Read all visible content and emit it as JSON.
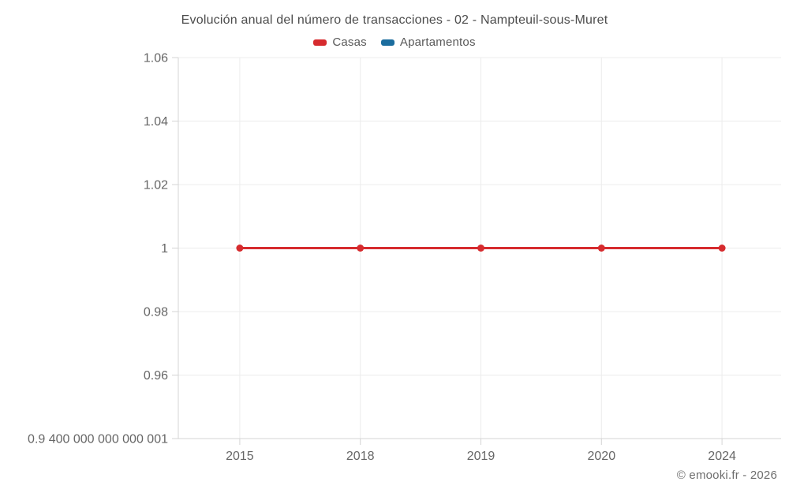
{
  "chart_data": {
    "type": "line",
    "title": "Evolución anual del número de transacciones - 02 - Nampteuil-sous-Muret",
    "categories": [
      "2015",
      "2018",
      "2019",
      "2020",
      "2024"
    ],
    "series": [
      {
        "name": "Casas",
        "color": "#d62b2e",
        "values": [
          1,
          1,
          1,
          1,
          1
        ]
      },
      {
        "name": "Apartamentos",
        "color": "#1b6d9e",
        "values": []
      }
    ],
    "yticks": [
      {
        "label": "1.06",
        "value": 1.06
      },
      {
        "label": "1.04",
        "value": 1.04
      },
      {
        "label": "1.02",
        "value": 1.02
      },
      {
        "label": "1",
        "value": 1
      },
      {
        "label": "0.98",
        "value": 0.98
      },
      {
        "label": "0.96",
        "value": 0.96
      },
      {
        "label": "0.9 400 000 000 000 001",
        "value": 0.94
      }
    ],
    "ylim": [
      0.94,
      1.06
    ],
    "grid": true,
    "legend_position": "top",
    "xlabel": "",
    "ylabel": ""
  },
  "footer": {
    "credit": "© emooki.fr - 2026"
  },
  "colors": {
    "grid": "#ececec",
    "axis": "#d4d4d4",
    "tick_text": "#666666",
    "title_text": "#4c4c4c",
    "legend_text": "#595959",
    "background": "#ffffff"
  }
}
